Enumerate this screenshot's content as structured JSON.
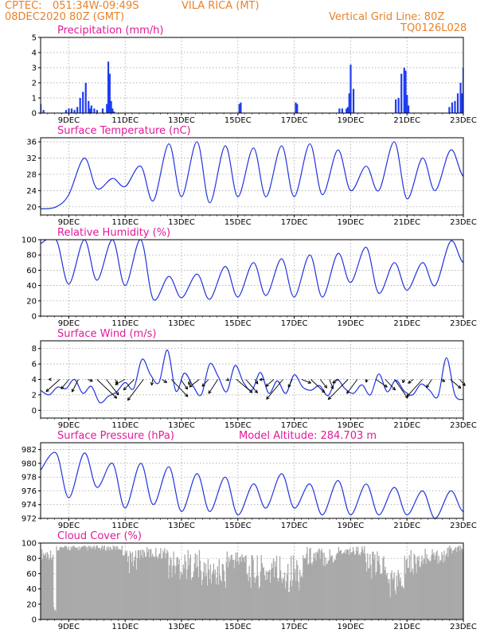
{
  "header": {
    "source": "CPTEC:",
    "location": "051:34W-09:49S",
    "station": "VILA RICA (MT)",
    "run": "08DEC2020 80Z (GMT)",
    "grid_line": "Vertical Grid Line: 80Z",
    "model_code": "TQ0126L028"
  },
  "colors": {
    "header": "#e8822a",
    "title": "#e21a9a",
    "series": "#2233dd",
    "bars": "#1f3cf0",
    "cloud": "#a9a9a9",
    "grid": "#999999"
  },
  "x_axis": {
    "ticks": [
      "9DEC",
      "11DEC",
      "13DEC",
      "15DEC",
      "17DEC",
      "19DEC",
      "21DEC",
      "23DEC"
    ],
    "tick_day": [
      9,
      11,
      13,
      15,
      17,
      19,
      21,
      23
    ],
    "start_day": 8,
    "end_day": 23
  },
  "chart_data": [
    {
      "id": "precip",
      "type": "bar",
      "title": "Precipitation (mm/h)",
      "ylim": [
        0,
        5
      ],
      "yticks": [
        0,
        1,
        2,
        3,
        4,
        5
      ],
      "grid": true,
      "x_day": [
        8.0,
        8.1,
        8.9,
        9.0,
        9.1,
        9.2,
        9.3,
        9.4,
        9.5,
        9.6,
        9.7,
        9.75,
        9.8,
        9.9,
        10.0,
        10.2,
        10.35,
        10.4,
        10.45,
        10.5,
        10.55,
        10.6,
        15.05,
        15.1,
        17.05,
        17.1,
        18.6,
        18.7,
        18.85,
        18.9,
        18.95,
        19.0,
        19.1,
        20.6,
        20.7,
        20.8,
        20.9,
        20.95,
        21.0,
        21.05,
        22.5,
        22.6,
        22.7,
        22.8,
        22.9,
        22.95,
        23.0
      ],
      "values": [
        0.6,
        0.2,
        0.2,
        0.3,
        0.3,
        0.2,
        0.4,
        1.0,
        1.4,
        2.0,
        0.8,
        0.3,
        0.5,
        0.3,
        0.2,
        0.3,
        0.6,
        3.4,
        2.6,
        0.8,
        0.3,
        0.1,
        0.6,
        0.7,
        0.7,
        0.6,
        0.3,
        0.3,
        0.3,
        0.4,
        1.3,
        3.2,
        1.6,
        0.9,
        1.0,
        2.6,
        3.0,
        2.8,
        1.2,
        0.5,
        0.4,
        0.7,
        0.8,
        1.3,
        2.0,
        1.3,
        3.0
      ]
    },
    {
      "id": "temp",
      "type": "line",
      "title": "Surface Temperature (nC)",
      "ylim": [
        18,
        37
      ],
      "yticks": [
        20,
        24,
        28,
        32,
        36
      ],
      "grid": true,
      "daily_min": [
        19.5,
        23.0,
        24.5,
        25.0,
        21.5,
        22.5,
        21.0,
        22.5,
        22.5,
        22.5,
        23.0,
        24.0,
        24.0,
        22.0,
        24.0,
        27.5
      ],
      "daily_max": [
        20.0,
        32.0,
        27.0,
        30.0,
        35.5,
        36.0,
        35.0,
        34.5,
        35.0,
        35.5,
        34.0,
        30.0,
        36.0,
        32.0,
        34.0,
        28.0
      ]
    },
    {
      "id": "rh",
      "type": "line",
      "title": "Relative Humidity (%)",
      "ylim": [
        0,
        100
      ],
      "yticks": [
        0,
        20,
        40,
        60,
        80,
        100
      ],
      "grid": true,
      "daily_min": [
        95,
        42,
        47,
        40,
        22,
        24,
        22,
        25,
        27,
        25,
        25,
        44,
        30,
        34,
        40,
        70
      ],
      "daily_max": [
        100,
        100,
        100,
        100,
        52,
        55,
        65,
        70,
        75,
        80,
        82,
        90,
        70,
        70,
        98,
        80
      ]
    },
    {
      "id": "wind",
      "type": "line",
      "title": "Surface Wind (m/s)",
      "ylim": [
        -1,
        9
      ],
      "yticks": [
        0,
        2,
        4,
        6,
        8
      ],
      "grid": true,
      "speed_pattern": [
        2.6,
        2.0,
        3.0,
        2.8,
        4.0,
        2.2,
        3.1,
        1.0,
        1.8,
        2.4,
        3.6,
        2.8,
        6.6,
        4.6,
        3.6,
        7.8,
        2.5,
        4.8,
        3.2,
        2.0,
        6.0,
        4.4,
        2.4,
        5.8,
        3.6,
        2.6,
        4.9,
        2.2,
        3.8,
        2.2,
        4.6,
        3.0,
        2.6,
        3.2,
        1.9,
        4.0,
        2.8,
        2.2,
        3.3,
        2.0,
        4.7,
        2.4,
        3.9,
        2.5,
        2.0,
        3.4,
        2.6,
        1.8,
        6.8,
        2.0,
        1.4
      ]
    },
    {
      "id": "pressure",
      "type": "line",
      "title": "Surface Pressure (hPa)",
      "subtitle": "Model Altitude: 284.703 m",
      "ylim": [
        972,
        983
      ],
      "yticks": [
        972,
        974,
        976,
        978,
        980,
        982
      ],
      "grid": true,
      "daily_min": [
        979.0,
        975.0,
        976.5,
        973.5,
        974.0,
        973.0,
        973.0,
        972.5,
        973.5,
        973.5,
        972.5,
        972.5,
        972.5,
        972.5,
        972.0,
        973.0
      ],
      "daily_max": [
        981.5,
        981.5,
        980.0,
        980.0,
        979.5,
        978.5,
        978.0,
        977.0,
        978.5,
        977.0,
        977.5,
        977.0,
        976.5,
        976.0,
        976.0,
        975.0
      ]
    },
    {
      "id": "cloud",
      "type": "area",
      "title": "Cloud Cover (%)",
      "ylim": [
        0,
        100
      ],
      "yticks": [
        0,
        20,
        40,
        60,
        80,
        100
      ],
      "grid": true,
      "segments": [
        {
          "from": 8.0,
          "to": 8.45,
          "lo": 70,
          "hi": 93
        },
        {
          "from": 8.45,
          "to": 8.55,
          "lo": 2,
          "hi": 20
        },
        {
          "from": 8.55,
          "to": 10.9,
          "lo": 86,
          "hi": 97
        },
        {
          "from": 10.9,
          "to": 11.5,
          "lo": 40,
          "hi": 92
        },
        {
          "from": 11.5,
          "to": 12.5,
          "lo": 70,
          "hi": 95
        },
        {
          "from": 12.5,
          "to": 13.7,
          "lo": 30,
          "hi": 92
        },
        {
          "from": 13.7,
          "to": 14.6,
          "lo": 20,
          "hi": 80
        },
        {
          "from": 14.6,
          "to": 15.3,
          "lo": 50,
          "hi": 92
        },
        {
          "from": 15.3,
          "to": 16.3,
          "lo": 15,
          "hi": 85
        },
        {
          "from": 16.3,
          "to": 17.3,
          "lo": 5,
          "hi": 90
        },
        {
          "from": 17.3,
          "to": 18.5,
          "lo": 55,
          "hi": 96
        },
        {
          "from": 18.5,
          "to": 19.5,
          "lo": 75,
          "hi": 97
        },
        {
          "from": 19.5,
          "to": 20.3,
          "lo": 30,
          "hi": 90
        },
        {
          "from": 20.3,
          "to": 20.9,
          "lo": 5,
          "hi": 70
        },
        {
          "from": 20.9,
          "to": 21.6,
          "lo": 40,
          "hi": 92
        },
        {
          "from": 21.6,
          "to": 22.5,
          "lo": 60,
          "hi": 95
        },
        {
          "from": 22.5,
          "to": 23.0,
          "lo": 80,
          "hi": 97
        }
      ]
    }
  ]
}
